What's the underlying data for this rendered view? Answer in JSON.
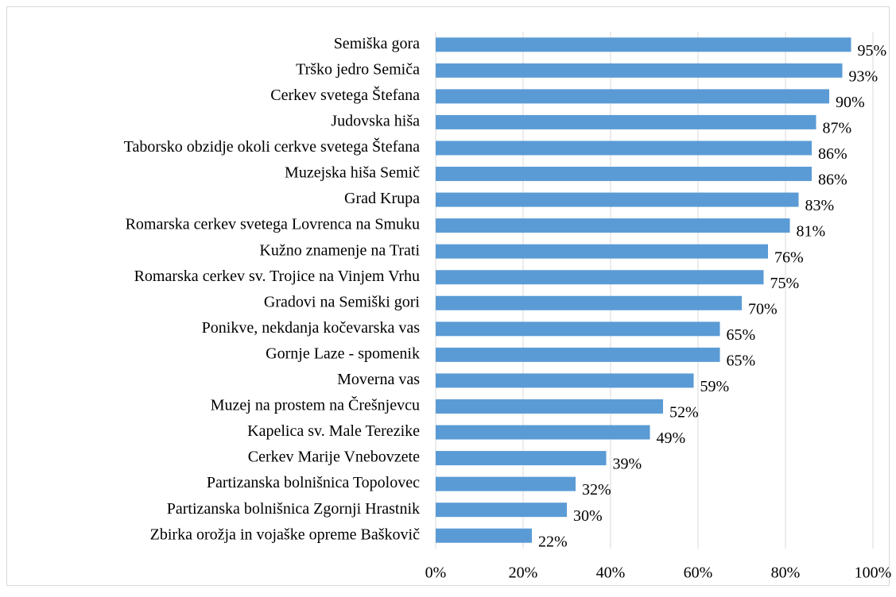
{
  "chart_data": {
    "type": "barh",
    "categories": [
      "Semiška gora",
      "Trško jedro Semiča",
      "Cerkev svetega Štefana",
      "Judovska hiša",
      "Taborsko obzidje okoli cerkve svetega Štefana",
      "Muzejska hiša Semič",
      "Grad Krupa",
      "Romarska cerkev svetega Lovrenca na Smuku",
      "Kužno znamenje na Trati",
      "Romarska cerkev sv. Trojice na Vinjem Vrhu",
      "Gradovi na Semiški gori",
      "Ponikve, nekdanja kočevarska vas",
      "Gornje Laze - spomenik",
      "Moverna vas",
      "Muzej na prostem na Črešnjevcu",
      "Kapelica sv. Male Terezike",
      "Cerkev Marije Vnebovzete",
      "Partizanska bolnišnica Topolovec",
      "Partizanska bolnišnica Zgornji Hrastnik",
      "Zbirka orožja in vojaške opreme Baškovič"
    ],
    "values": [
      95,
      93,
      90,
      87,
      86,
      86,
      83,
      81,
      76,
      75,
      70,
      65,
      65,
      59,
      52,
      49,
      39,
      32,
      30,
      22
    ],
    "value_labels": [
      "95%",
      "93%",
      "90%",
      "87%",
      "86%",
      "86%",
      "83%",
      "81%",
      "76%",
      "75%",
      "70%",
      "65%",
      "65%",
      "59%",
      "52%",
      "49%",
      "39%",
      "32%",
      "30%",
      "22%"
    ],
    "color": "#5b9bd5",
    "xlim": [
      0,
      100
    ],
    "xticks": [
      {
        "value": 0,
        "label": "0%"
      },
      {
        "value": 20,
        "label": "20%"
      },
      {
        "value": 40,
        "label": "40%"
      },
      {
        "value": 60,
        "label": "60%"
      },
      {
        "value": 80,
        "label": "80%"
      },
      {
        "value": 100,
        "label": "100%"
      }
    ],
    "grid": true
  }
}
